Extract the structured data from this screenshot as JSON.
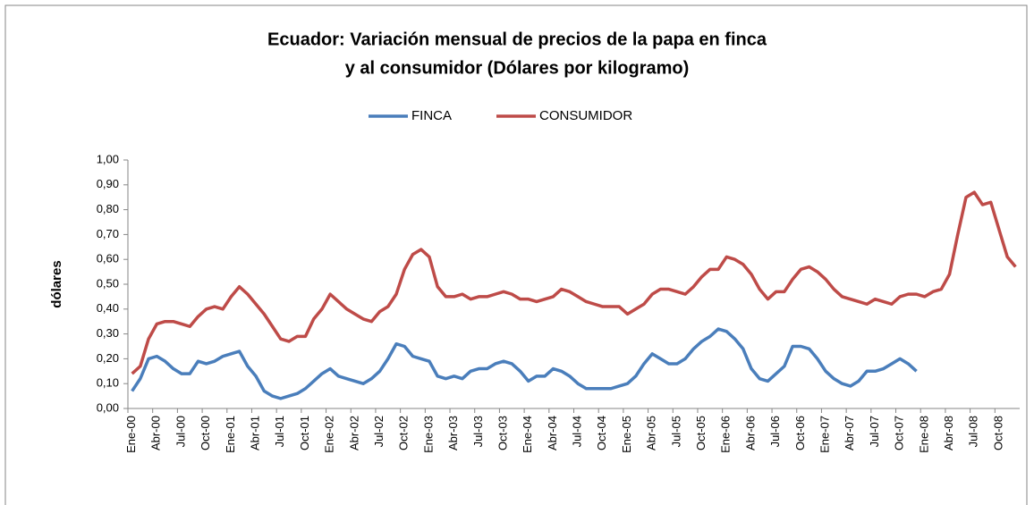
{
  "chart_data": {
    "type": "line",
    "title": [
      "Ecuador: Variación mensual de precios de la papa en finca",
      "y al consumidor (Dólares por kilogramo)"
    ],
    "y_label": "dólares",
    "categories": [
      "Ene-00",
      null,
      null,
      "Abr-00",
      null,
      null,
      "Jul-00",
      null,
      null,
      "Oct-00",
      null,
      null,
      "Ene-01",
      null,
      null,
      "Abr-01",
      null,
      null,
      "Jul-01",
      null,
      null,
      "Oct-01",
      null,
      null,
      "Ene-02",
      null,
      null,
      "Abr-02",
      null,
      null,
      "Jul-02",
      null,
      null,
      "Oct-02",
      null,
      null,
      "Ene-03",
      null,
      null,
      "Abr-03",
      null,
      null,
      "Jul-03",
      null,
      null,
      "Oct-03",
      null,
      null,
      "Ene-04",
      null,
      null,
      "Abr-04",
      null,
      null,
      "Jul-04",
      null,
      null,
      "Oct-04",
      null,
      null,
      "Ene-05",
      null,
      null,
      "Abr-05",
      null,
      null,
      "Jul-05",
      null,
      null,
      "Oct-05",
      null,
      null,
      "Ene-06",
      null,
      null,
      "Abr-06",
      null,
      null,
      "Jul-06",
      null,
      null,
      "Oct-06",
      null,
      null,
      "Ene-07",
      null,
      null,
      "Abr-07",
      null,
      null,
      "Jul-07",
      null,
      null,
      "Oct-07",
      null,
      null,
      "Ene-08",
      null,
      null,
      "Abr-08",
      null,
      null,
      "Jul-08",
      null,
      null,
      "Oct-08",
      null,
      null
    ],
    "series": [
      {
        "name": "FINCA",
        "color": "#4a7ebb",
        "values": [
          0.07,
          0.12,
          0.2,
          0.21,
          0.19,
          0.16,
          0.14,
          0.14,
          0.19,
          0.18,
          0.19,
          0.21,
          0.22,
          0.23,
          0.17,
          0.13,
          0.07,
          0.05,
          0.04,
          0.05,
          0.06,
          0.08,
          0.11,
          0.14,
          0.16,
          0.13,
          0.12,
          0.11,
          0.1,
          0.12,
          0.15,
          0.2,
          0.26,
          0.25,
          0.21,
          0.2,
          0.19,
          0.13,
          0.12,
          0.13,
          0.12,
          0.15,
          0.16,
          0.16,
          0.18,
          0.19,
          0.18,
          0.15,
          0.11,
          0.13,
          0.13,
          0.16,
          0.15,
          0.13,
          0.1,
          0.08,
          0.08,
          0.08,
          0.08,
          0.09,
          0.1,
          0.13,
          0.18,
          0.22,
          0.2,
          0.18,
          0.18,
          0.2,
          0.24,
          0.27,
          0.29,
          0.32,
          0.31,
          0.28,
          0.24,
          0.16,
          0.12,
          0.11,
          0.14,
          0.17,
          0.25,
          0.25,
          0.24,
          0.2,
          0.15,
          0.12,
          0.1,
          0.09,
          0.11,
          0.15,
          0.15,
          0.16,
          0.18,
          0.2,
          0.18,
          0.15,
          null,
          null,
          null,
          null,
          null,
          null,
          null,
          null,
          null,
          null,
          null,
          null
        ]
      },
      {
        "name": "CONSUMIDOR",
        "color": "#be4b48",
        "values": [
          0.14,
          0.17,
          0.28,
          0.34,
          0.35,
          0.35,
          0.34,
          0.33,
          0.37,
          0.4,
          0.41,
          0.4,
          0.45,
          0.49,
          0.46,
          0.42,
          0.38,
          0.33,
          0.28,
          0.27,
          0.29,
          0.29,
          0.36,
          0.4,
          0.46,
          0.43,
          0.4,
          0.38,
          0.36,
          0.35,
          0.39,
          0.41,
          0.46,
          0.56,
          0.62,
          0.64,
          0.61,
          0.49,
          0.45,
          0.45,
          0.46,
          0.44,
          0.45,
          0.45,
          0.46,
          0.47,
          0.46,
          0.44,
          0.44,
          0.43,
          0.44,
          0.45,
          0.48,
          0.47,
          0.45,
          0.43,
          0.42,
          0.41,
          0.41,
          0.41,
          0.38,
          0.4,
          0.42,
          0.46,
          0.48,
          0.48,
          0.47,
          0.46,
          0.49,
          0.53,
          0.56,
          0.56,
          0.61,
          0.6,
          0.58,
          0.54,
          0.48,
          0.44,
          0.47,
          0.47,
          0.52,
          0.56,
          0.57,
          0.55,
          0.52,
          0.48,
          0.45,
          0.44,
          0.43,
          0.42,
          0.44,
          0.43,
          0.42,
          0.45,
          0.46,
          0.46,
          0.45,
          0.47,
          0.48,
          0.54,
          0.7,
          0.85,
          0.87,
          0.82,
          0.83,
          0.72,
          0.61,
          0.57
        ]
      }
    ],
    "ylim": [
      0,
      1
    ],
    "yticks": [
      {
        "value": 0,
        "label": "0,00"
      },
      {
        "value": 0.1,
        "label": "0,10"
      },
      {
        "value": 0.2,
        "label": "0,20"
      },
      {
        "value": 0.3,
        "label": "0,30"
      },
      {
        "value": 0.4,
        "label": "0,40"
      },
      {
        "value": 0.5,
        "label": "0,50"
      },
      {
        "value": 0.6,
        "label": "0,60"
      },
      {
        "value": 0.7,
        "label": "0,70"
      },
      {
        "value": 0.8,
        "label": "0,80"
      },
      {
        "value": 0.9,
        "label": "0,90"
      },
      {
        "value": 1,
        "label": "1,00"
      }
    ],
    "grid": false,
    "legend": "top"
  }
}
